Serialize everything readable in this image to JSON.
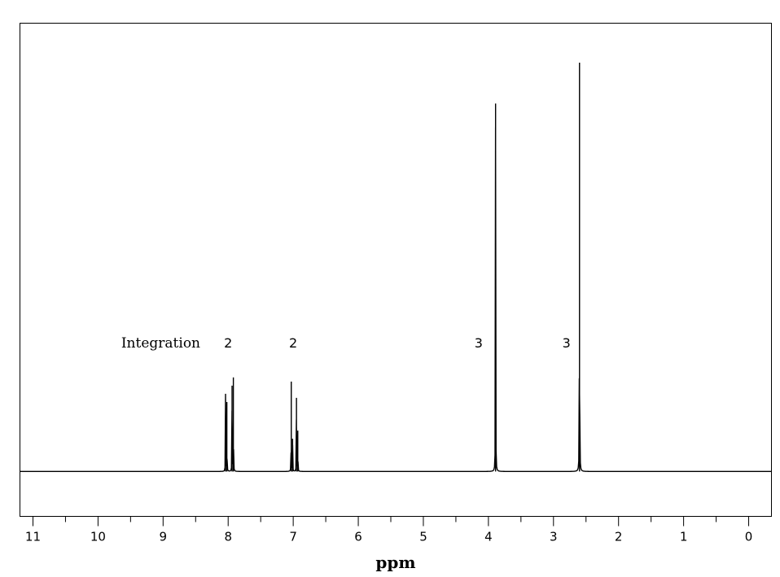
{
  "chart_data": {
    "type": "line",
    "title": "",
    "xlabel": "ppm",
    "ylabel": "",
    "xlim": [
      11.2,
      -0.35
    ],
    "x_reversed": true,
    "grid": false,
    "x_ticks": [
      11,
      10,
      9,
      8,
      7,
      6,
      5,
      4,
      3,
      2,
      1,
      0
    ],
    "x_tick_labels": [
      "11",
      "10",
      "9",
      "8",
      "7",
      "6",
      "5",
      "4",
      "3",
      "2",
      "1",
      "0"
    ],
    "x_minor_step": 0.5,
    "integration_label": "Integration",
    "integrations": [
      {
        "ppm": 8.0,
        "value": "2"
      },
      {
        "ppm": 7.0,
        "value": "2"
      },
      {
        "ppm": 4.15,
        "value": "3"
      },
      {
        "ppm": 2.8,
        "value": "3"
      }
    ],
    "peaks": [
      {
        "ppm": 8.04,
        "intensity": 0.19
      },
      {
        "ppm": 8.02,
        "intensity": 0.17
      },
      {
        "ppm": 7.94,
        "intensity": 0.21
      },
      {
        "ppm": 7.92,
        "intensity": 0.23
      },
      {
        "ppm": 7.03,
        "intensity": 0.22
      },
      {
        "ppm": 7.01,
        "intensity": 0.08
      },
      {
        "ppm": 6.95,
        "intensity": 0.18
      },
      {
        "ppm": 6.93,
        "intensity": 0.1
      },
      {
        "ppm": 3.89,
        "intensity": 0.9
      },
      {
        "ppm": 2.6,
        "intensity": 1.0
      }
    ],
    "baseline_fraction": 0.1
  }
}
